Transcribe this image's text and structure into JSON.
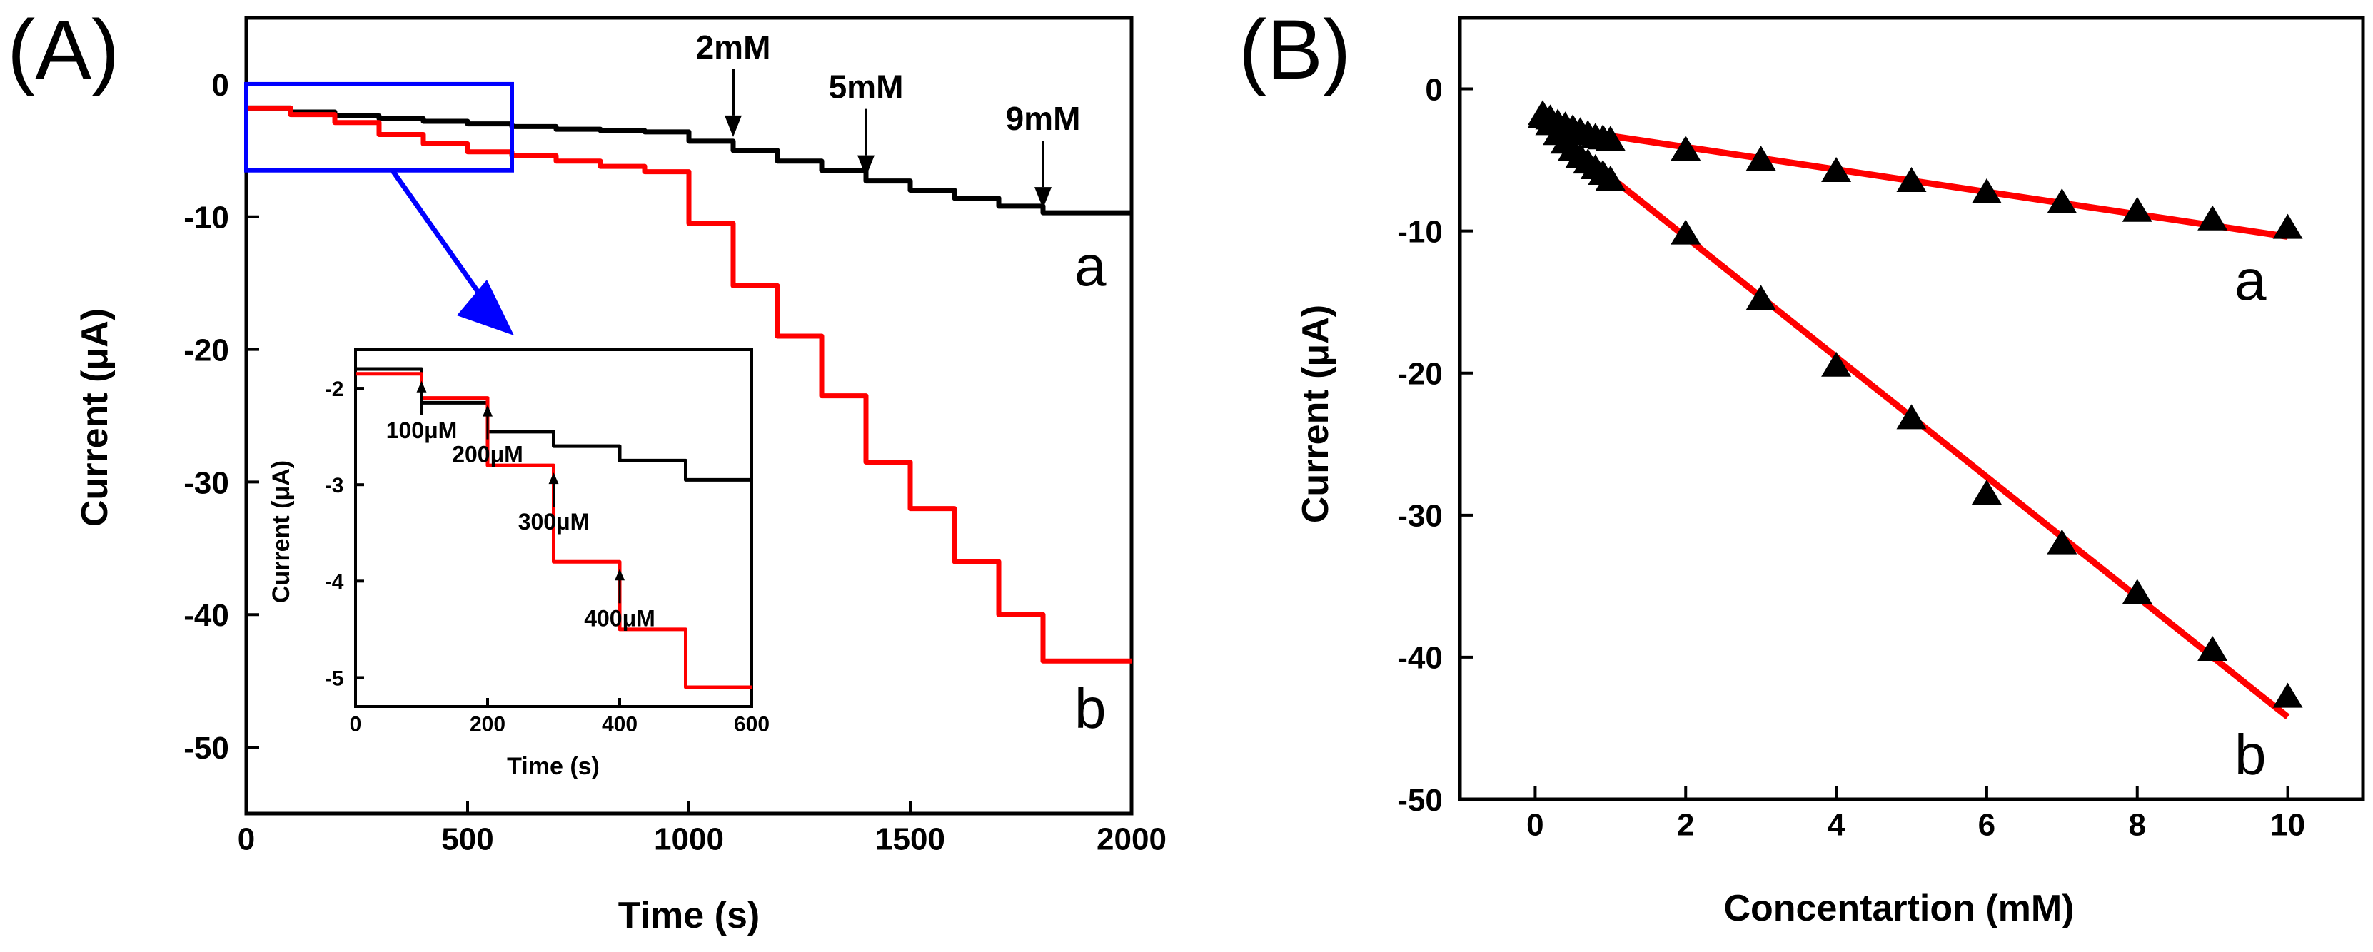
{
  "colors": {
    "series_a": "#000000",
    "series_b": "#ff0000",
    "highlight": "#0000ff",
    "axis": "#000000"
  },
  "panels": {
    "a": {
      "label": "(A)"
    },
    "b": {
      "label": "(B)"
    }
  },
  "chart_data": [
    {
      "id": "A-main",
      "type": "line",
      "title": "",
      "xlabel": "Time (s)",
      "ylabel": "Current (μA)",
      "xlim": [
        0,
        2000
      ],
      "ylim": [
        -55,
        5
      ],
      "xticks": [
        0,
        500,
        1000,
        1500,
        2000
      ],
      "xtick_labels": [
        "0",
        "500",
        "1000",
        "1500",
        "2000"
      ],
      "yticks": [
        0,
        -10,
        -20,
        -30,
        -40,
        -50
      ],
      "ytick_labels": [
        "0",
        "-10",
        "-20",
        "-30",
        "-40",
        "-50"
      ],
      "series": [
        {
          "name": "a",
          "label": "a",
          "step_times": [
            0,
            100,
            200,
            300,
            400,
            500,
            600,
            700,
            800,
            900,
            1000,
            1100,
            1200,
            1300,
            1400,
            1500,
            1600,
            1700,
            1800
          ],
          "levels": [
            -1.8,
            -2.1,
            -2.4,
            -2.6,
            -2.8,
            -3.0,
            -3.2,
            -3.4,
            -3.5,
            -3.6,
            -4.3,
            -5.0,
            -5.8,
            -6.5,
            -7.3,
            -8.0,
            -8.6,
            -9.2,
            -9.7
          ],
          "x_end": 2000
        },
        {
          "name": "b",
          "label": "b",
          "step_times": [
            0,
            100,
            200,
            300,
            400,
            500,
            600,
            700,
            800,
            900,
            1000,
            1100,
            1200,
            1300,
            1400,
            1500,
            1600,
            1700,
            1800
          ],
          "levels": [
            -1.8,
            -2.3,
            -2.9,
            -3.8,
            -4.5,
            -5.1,
            -5.4,
            -5.8,
            -6.2,
            -6.6,
            -10.5,
            -15.2,
            -19.0,
            -23.5,
            -28.5,
            -32.0,
            -36.0,
            -40.0,
            -43.5
          ],
          "x_end": 2000
        }
      ],
      "annotations": [
        {
          "text": "2mM",
          "x": 1100,
          "y": -4.3
        },
        {
          "text": "5mM",
          "x": 1400,
          "y": -7.3
        },
        {
          "text": "9mM",
          "x": 1800,
          "y": -9.7
        }
      ],
      "highlight_box": {
        "x0": 0,
        "x1": 600,
        "y0": -6.5,
        "y1": 0
      }
    },
    {
      "id": "A-inset",
      "type": "line",
      "title": "",
      "xlabel": "Time (s)",
      "ylabel": "Current (μA)",
      "xlim": [
        0,
        600
      ],
      "ylim": [
        -5.3,
        -1.6
      ],
      "xticks": [
        0,
        200,
        400,
        600
      ],
      "xtick_labels": [
        "0",
        "200",
        "400",
        "600"
      ],
      "yticks": [
        -2,
        -3,
        -4,
        -5
      ],
      "ytick_labels": [
        "-2",
        "-3",
        "-4",
        "-5"
      ],
      "series": [
        {
          "name": "a",
          "step_times": [
            0,
            100,
            200,
            300,
            400,
            500
          ],
          "levels": [
            -1.8,
            -2.15,
            -2.45,
            -2.6,
            -2.75,
            -2.95
          ],
          "x_end": 600
        },
        {
          "name": "b",
          "step_times": [
            0,
            100,
            200,
            300,
            400,
            500
          ],
          "levels": [
            -1.85,
            -2.1,
            -2.8,
            -3.8,
            -4.5,
            -5.1
          ],
          "x_end": 600
        }
      ],
      "annotations": [
        {
          "text": "100μM",
          "x": 100
        },
        {
          "text": "200μM",
          "x": 200
        },
        {
          "text": "300μM",
          "x": 300
        },
        {
          "text": "400μM",
          "x": 400
        }
      ]
    },
    {
      "id": "B",
      "type": "scatter",
      "title": "",
      "xlabel": "Concentartion (mM)",
      "ylabel": "Current (μA)",
      "xlim": [
        -1,
        11
      ],
      "ylim": [
        -50,
        5
      ],
      "xticks": [
        0,
        2,
        4,
        6,
        8,
        10
      ],
      "xtick_labels": [
        "0",
        "2",
        "4",
        "6",
        "8",
        "10"
      ],
      "yticks": [
        0,
        -10,
        -20,
        -30,
        -40,
        -50
      ],
      "ytick_labels": [
        "0",
        "-10",
        "-20",
        "-30",
        "-40",
        "-50"
      ],
      "series": [
        {
          "name": "a",
          "label": "a",
          "x": [
            0.1,
            0.2,
            0.3,
            0.4,
            0.5,
            0.6,
            0.7,
            0.8,
            0.9,
            1,
            2,
            3,
            4,
            5,
            6,
            7,
            8,
            9,
            10
          ],
          "y": [
            -1.8,
            -2.1,
            -2.4,
            -2.6,
            -2.8,
            -3.0,
            -3.2,
            -3.4,
            -3.5,
            -3.6,
            -4.3,
            -5.0,
            -5.8,
            -6.5,
            -7.3,
            -8.0,
            -8.6,
            -9.2,
            -9.8
          ],
          "fit": {
            "x": [
              0.1,
              10
            ],
            "y": [
              -2.6,
              -10.4
            ]
          }
        },
        {
          "name": "b",
          "label": "b",
          "x": [
            0.1,
            0.2,
            0.3,
            0.4,
            0.5,
            0.6,
            0.7,
            0.8,
            0.9,
            1,
            2,
            3,
            4,
            5,
            6,
            7,
            8,
            9,
            10
          ],
          "y": [
            -2.0,
            -2.5,
            -3.2,
            -3.8,
            -4.3,
            -4.8,
            -5.2,
            -5.6,
            -6.0,
            -6.4,
            -10.2,
            -14.8,
            -19.5,
            -23.2,
            -28.5,
            -32.0,
            -35.5,
            -39.5,
            -42.8
          ],
          "fit": {
            "x": [
              0.1,
              1,
              10
            ],
            "y": [
              -2.5,
              -6.2,
              -44.2
            ]
          }
        }
      ]
    }
  ]
}
